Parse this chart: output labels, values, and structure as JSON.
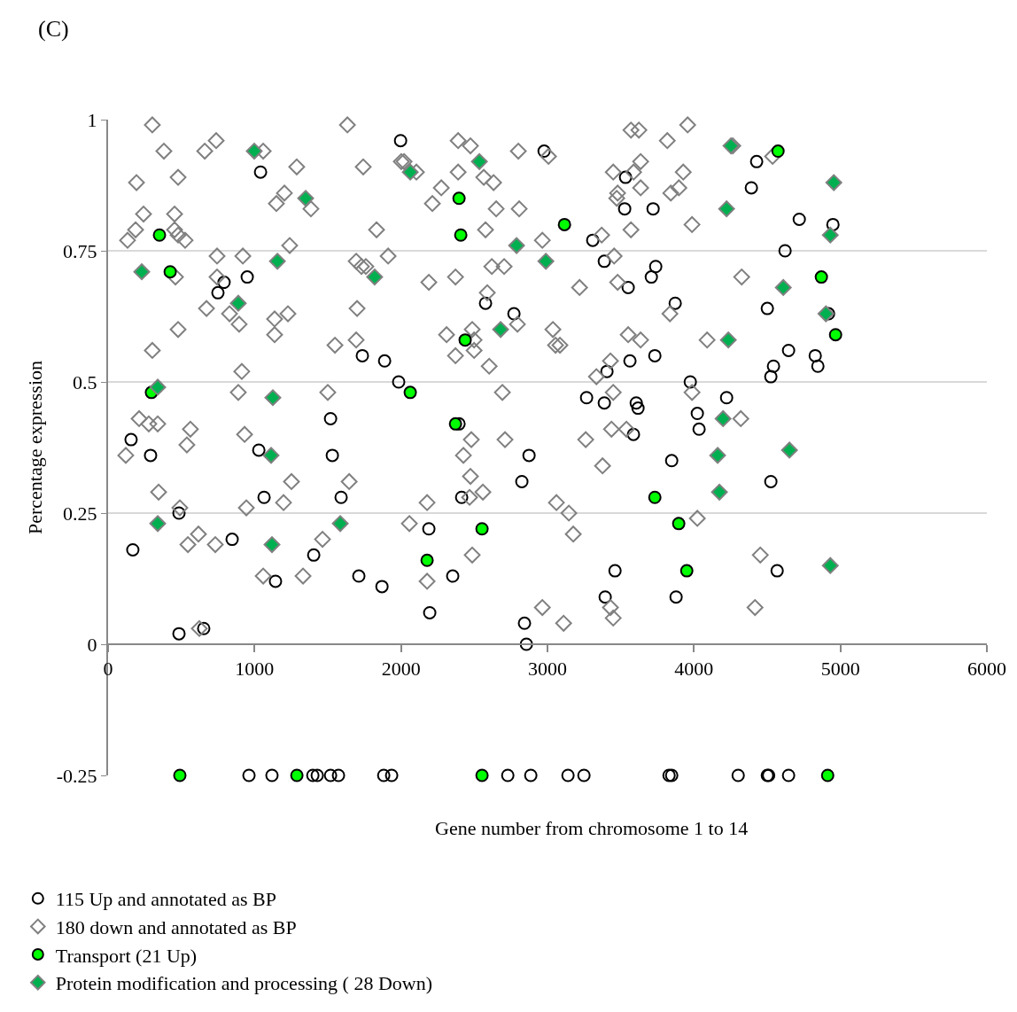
{
  "chart_data": {
    "type": "scatter",
    "xlabel": "Gene number from chromosome 1 to 14",
    "ylabel": "Percentage expression",
    "annotations": [
      "(C)"
    ],
    "xlim": [
      0,
      6000
    ],
    "xticks": [
      0,
      1000,
      2000,
      3000,
      4000,
      5000,
      6000
    ],
    "ylim": [
      -0.25,
      1
    ],
    "yticks": [
      {
        "value": -0.25,
        "label": "-0.25"
      },
      0,
      0.25,
      0.5,
      0.75,
      1
    ],
    "grid": "y",
    "legend": "bottom",
    "series": [
      {
        "name": "115 Up and annotated as BP",
        "color": "#000000",
        "marker": "circle",
        "x": [
          157,
          169,
          290,
          484,
          484,
          653,
          750,
          792,
          847,
          950,
          1029,
          1041,
          1065,
          1143,
          1404,
          1519,
          1531,
          1591,
          1712,
          1736,
          1870,
          1888,
          1984,
          1997,
          2196,
          2190,
          2353,
          2396,
          2414,
          2577,
          2771,
          2825,
          2843,
          2856,
          2874,
          2977,
          3267,
          3309,
          3388,
          3394,
          3406,
          3388,
          3461,
          3527,
          3533,
          3551,
          3563,
          3587,
          3606,
          3618,
          3709,
          3721,
          3739,
          3733,
          3848,
          3872,
          3878,
          3975,
          4023,
          4035,
          4223,
          4392,
          4428,
          4501,
          4525,
          4543,
          4525,
          4568,
          4622,
          4646,
          4719,
          4828,
          4846,
          4919,
          4949,
          962,
          1119,
          1398,
          1428,
          1519,
          1573,
          1882,
          1936,
          2729,
          2886,
          3140,
          3249,
          3830,
          3848,
          4302,
          4501,
          4510,
          4646
        ],
        "values": [
          0.39,
          0.18,
          0.36,
          0.02,
          0.25,
          0.03,
          0.67,
          0.69,
          0.2,
          0.7,
          0.37,
          0.9,
          0.28,
          0.12,
          0.17,
          0.43,
          0.36,
          0.28,
          0.13,
          0.55,
          0.11,
          0.54,
          0.5,
          0.96,
          0.06,
          0.22,
          0.13,
          0.42,
          0.28,
          0.65,
          0.63,
          0.31,
          0.04,
          0,
          0.36,
          0.94,
          0.47,
          0.77,
          0.73,
          0.09,
          0.52,
          0.46,
          0.14,
          0.83,
          0.89,
          0.68,
          0.54,
          0.4,
          0.46,
          0.45,
          0.7,
          0.83,
          0.72,
          0.55,
          0.35,
          0.65,
          0.09,
          0.5,
          0.44,
          0.41,
          0.47,
          0.87,
          0.92,
          0.64,
          0.51,
          0.53,
          0.31,
          0.14,
          0.75,
          0.56,
          0.81,
          0.55,
          0.53,
          0.63,
          0.8,
          -0.25,
          -0.25,
          -0.25,
          -0.25,
          -0.25,
          -0.25,
          -0.25,
          -0.25,
          -0.25,
          -0.25,
          -0.25,
          -0.25,
          -0.25,
          -0.25,
          -0.25,
          -0.25,
          -0.25,
          -0.25
        ]
      },
      {
        "name": "180 down and annotated as BP",
        "color": "#808080",
        "marker": "diamond",
        "x": [
          121,
          212,
          278,
          339,
          345,
          562,
          538,
          490,
          545,
          617,
          732,
          889,
          932,
          944,
          1059,
          1198,
          1252,
          1331,
          1500,
          1464,
          1646,
          623,
          302,
          381,
          660,
          738,
          1059,
          1634,
          194,
          478,
          1288,
          1742,
          2002,
          242,
          454,
          188,
          454,
          478,
          526,
          133,
          1204,
          1149,
          1385,
          1833,
          1240,
          744,
          920,
          1912,
          1694,
          1730,
          1760,
          460,
          744,
          672,
          829,
          1137,
          1228,
          895,
          1700,
          1137,
          478,
          302,
          1549,
          1694,
          913,
          2021,
          2105,
          2390,
          2474,
          2801,
          3007,
          2390,
          2565,
          2632,
          2275,
          2214,
          2650,
          2807,
          2577,
          2965,
          2620,
          2704,
          2190,
          2372,
          2589,
          3219,
          3479,
          3455,
          3370,
          3570,
          3636,
          3636,
          3588,
          3449,
          3479,
          3473,
          3842,
          3897,
          3927,
          3957,
          3570,
          3624,
          3818,
          3987,
          3836,
          3551,
          3636,
          2311,
          2486,
          2499,
          2372,
          2499,
          2602,
          3037,
          3055,
          3085,
          2795,
          3430,
          3334,
          2692,
          3449,
          3987,
          2480,
          2710,
          2426,
          3261,
          3437,
          3539,
          3376,
          2474,
          2559,
          2468,
          2178,
          3061,
          3146,
          3176,
          2057,
          2486,
          2178,
          2965,
          3110,
          3430,
          3449,
          4023,
          4265,
          4537,
          4326,
          4090,
          4320,
          4453,
          4417
        ],
        "values": [
          0.36,
          0.43,
          0.42,
          0.42,
          0.29,
          0.41,
          0.38,
          0.26,
          0.19,
          0.21,
          0.19,
          0.48,
          0.4,
          0.26,
          0.13,
          0.27,
          0.31,
          0.13,
          0.48,
          0.2,
          0.31,
          0.03,
          0.99,
          0.94,
          0.94,
          0.96,
          0.94,
          0.99,
          0.88,
          0.89,
          0.91,
          0.91,
          0.92,
          0.82,
          0.82,
          0.79,
          0.79,
          0.78,
          0.77,
          0.77,
          0.86,
          0.84,
          0.83,
          0.79,
          0.76,
          0.74,
          0.74,
          0.74,
          0.73,
          0.72,
          0.72,
          0.7,
          0.7,
          0.64,
          0.63,
          0.62,
          0.63,
          0.61,
          0.64,
          0.59,
          0.6,
          0.56,
          0.57,
          0.58,
          0.52,
          0.92,
          0.9,
          0.96,
          0.95,
          0.94,
          0.93,
          0.9,
          0.89,
          0.88,
          0.87,
          0.84,
          0.83,
          0.83,
          0.79,
          0.77,
          0.72,
          0.72,
          0.69,
          0.7,
          0.67,
          0.68,
          0.69,
          0.74,
          0.78,
          0.79,
          0.87,
          0.92,
          0.9,
          0.9,
          0.86,
          0.85,
          0.86,
          0.87,
          0.9,
          0.99,
          0.98,
          0.98,
          0.96,
          0.8,
          0.63,
          0.59,
          0.58,
          0.59,
          0.6,
          0.58,
          0.55,
          0.56,
          0.53,
          0.6,
          0.57,
          0.57,
          0.61,
          0.54,
          0.51,
          0.48,
          0.48,
          0.48,
          0.39,
          0.39,
          0.36,
          0.39,
          0.41,
          0.41,
          0.34,
          0.32,
          0.29,
          0.28,
          0.27,
          0.27,
          0.25,
          0.21,
          0.23,
          0.17,
          0.12,
          0.07,
          0.04,
          0.07,
          0.05,
          0.24,
          0.95,
          0.93,
          0.7,
          0.58,
          0.43,
          0.17,
          0.07
        ]
      },
      {
        "name": "Transport (21 Up)",
        "color": "#00ff00",
        "marker": "circle",
        "x": [
          351,
          424,
          296,
          2063,
          2178,
          2396,
          2408,
          2438,
          2372,
          2553,
          3116,
          3733,
          3896,
          3951,
          4574,
          4870,
          4967,
          490,
          1289,
          2553,
          4913
        ],
        "values": [
          0.78,
          0.71,
          0.48,
          0.48,
          0.16,
          0.85,
          0.78,
          0.58,
          0.42,
          0.22,
          0.8,
          0.28,
          0.23,
          0.14,
          0.94,
          0.7,
          0.59,
          -0.25,
          -0.25,
          -0.25,
          -0.25
        ]
      },
      {
        "name": "Protein modification and processing ( 28 Down)",
        "color": "#00b050",
        "marker": "diamond",
        "x": [
          998,
          230,
          889,
          1349,
          1156,
          339,
          339,
          1125,
          1113,
          1119,
          1585,
          1820,
          2063,
          2535,
          2789,
          2989,
          2680,
          4253,
          4223,
          4610,
          4235,
          4199,
          4162,
          4174,
          4652,
          4955,
          4931,
          4901,
          4931
        ],
        "values": [
          0.94,
          0.71,
          0.65,
          0.85,
          0.73,
          0.49,
          0.23,
          0.47,
          0.36,
          0.19,
          0.23,
          0.7,
          0.9,
          0.92,
          0.76,
          0.73,
          0.6,
          0.95,
          0.83,
          0.68,
          0.58,
          0.43,
          0.36,
          0.29,
          0.37,
          0.88,
          0.78,
          0.63,
          0.15
        ]
      }
    ]
  }
}
